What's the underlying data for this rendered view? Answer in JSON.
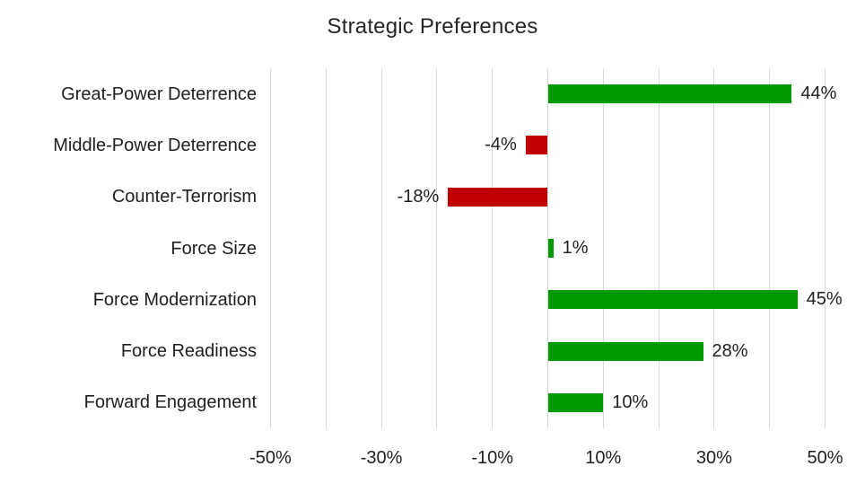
{
  "title": "Strategic Preferences",
  "colors": {
    "positive_bar": "#009A00",
    "negative_bar": "#C00000",
    "gridline": "#D9D9D9",
    "text": "#1F1F1F"
  },
  "chart_data": {
    "type": "bar",
    "orientation": "horizontal",
    "title": "Strategic Preferences",
    "categories": [
      "Great-Power Deterrence",
      "Middle-Power Deterrence",
      "Counter-Terrorism",
      "Force Size",
      "Force Modernization",
      "Force Readiness",
      "Forward Engagement"
    ],
    "values": [
      44,
      -4,
      -18,
      1,
      45,
      28,
      10
    ],
    "value_labels": [
      "44%",
      "-4%",
      "-18%",
      "1%",
      "45%",
      "28%",
      "10%"
    ],
    "xlabel": "",
    "ylabel": "",
    "xlim": [
      -50,
      50
    ],
    "gridline_step": 10,
    "grid": true,
    "legend": false,
    "xticks": [
      {
        "value": -50,
        "label": "-50%"
      },
      {
        "value": -30,
        "label": "-30%"
      },
      {
        "value": -10,
        "label": "-10%"
      },
      {
        "value": 10,
        "label": "10%"
      },
      {
        "value": 30,
        "label": "30%"
      },
      {
        "value": 50,
        "label": "50%"
      }
    ]
  }
}
